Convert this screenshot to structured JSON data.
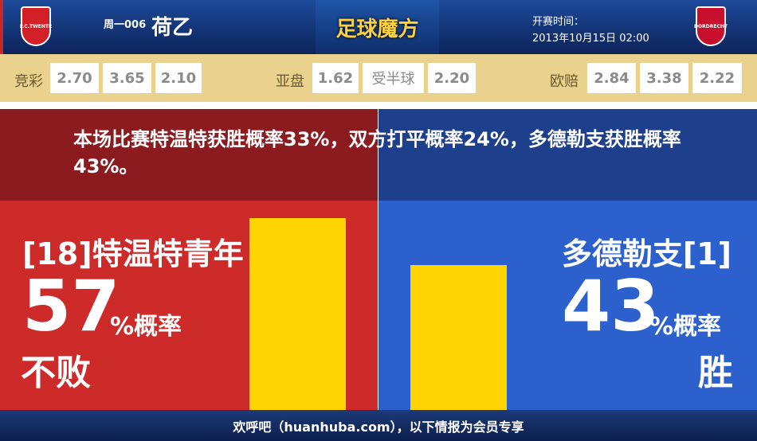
{
  "header": {
    "home_logo_text": "F.C.TWENTE",
    "match_no": "周一006",
    "league": "荷乙",
    "brand": "足球魔方",
    "kickoff_label": "开赛时间：",
    "kickoff_time": "2013年10月15日 02:00",
    "away_logo_text": "DORDRECHT"
  },
  "odds": {
    "jingcai_label": "竞彩",
    "jingcai": [
      "2.70",
      "3.65",
      "2.10"
    ],
    "yapan_label": "亚盘",
    "yapan": [
      "1.62",
      "受半球",
      "2.20"
    ],
    "ouzhou_label": "欧赔",
    "ouzhou": [
      "2.84",
      "3.38",
      "2.22"
    ]
  },
  "summary": "本场比赛特温特获胜概率33%，双方打平概率24%，多德勒支获胜概率43%。",
  "home": {
    "name": "[18]特温特青年",
    "percent": "57",
    "unit": "%概率",
    "outcome": "不败",
    "value": 57
  },
  "away": {
    "name": "多德勒支[1]",
    "percent": "43",
    "unit": "%概率",
    "outcome": "胜",
    "value": 43
  },
  "colors": {
    "home": "#cd2a2a",
    "away": "#2c60cd",
    "bar": "#ffd400"
  },
  "footer": "欢呼吧（huanhuba.com），以下情报为会员专享"
}
